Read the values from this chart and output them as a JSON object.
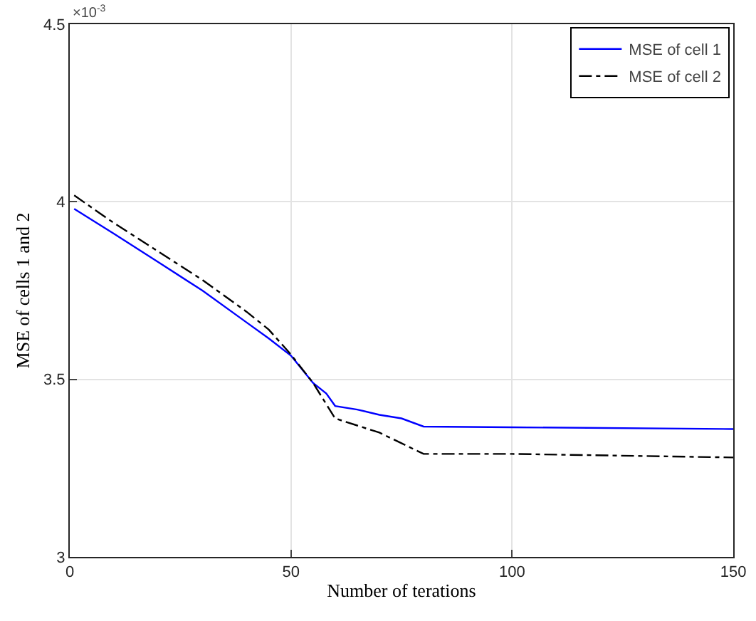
{
  "chart_data": {
    "type": "line",
    "xlabel": "Number of terations",
    "ylabel": "MSE of cells 1 and 2",
    "annotations": [
      "×10$^{-3}$"
    ],
    "x": [
      1,
      10,
      20,
      30,
      40,
      45,
      50,
      55,
      58,
      60,
      65,
      70,
      75,
      80,
      100,
      150
    ],
    "series": [
      {
        "name": "MSE of cell 1",
        "color": "#0000ff",
        "line_style": "solid",
        "values": [
          3.98,
          3.91,
          3.83,
          3.75,
          3.66,
          3.615,
          3.567,
          3.49,
          3.46,
          3.425,
          3.415,
          3.4,
          3.39,
          3.367,
          3.365,
          3.36
        ]
      },
      {
        "name": "MSE of cell 2",
        "color": "#000000",
        "line_style": "dashdot",
        "values": [
          4.018,
          3.94,
          3.86,
          3.78,
          3.69,
          3.64,
          3.57,
          3.49,
          3.43,
          3.39,
          3.37,
          3.35,
          3.32,
          3.29,
          3.29,
          3.28
        ]
      }
    ],
    "xlim": [
      0,
      150
    ],
    "xticks": [
      0,
      50,
      100,
      150
    ],
    "ylim": [
      3,
      4.5
    ],
    "yticks": [
      3,
      3.5,
      4,
      4.5
    ],
    "grid": true,
    "legend": "top right",
    "marker": "none"
  }
}
